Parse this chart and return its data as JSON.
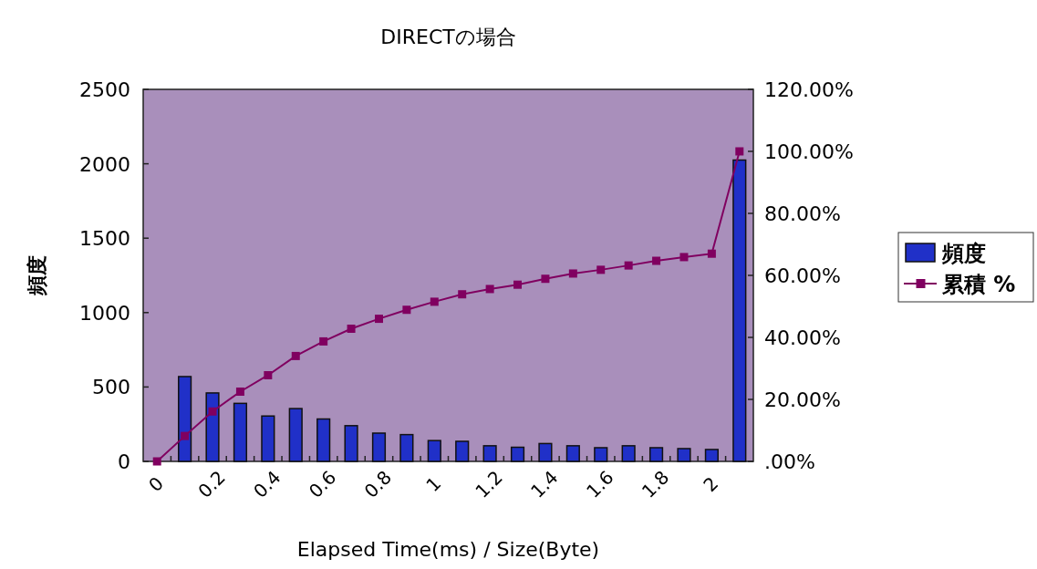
{
  "chart_data": {
    "type": "bar",
    "title": "DIRECTの場合",
    "xlabel": "Elapsed Time(ms) / Size(Byte)",
    "ylabel": "頻度",
    "categories": [
      "0",
      null,
      "0.2",
      null,
      "0.4",
      null,
      "0.6",
      null,
      "0.8",
      null,
      "1",
      null,
      "1.2",
      null,
      "1.4",
      null,
      "1.6",
      null,
      "1.8",
      null,
      "2",
      null
    ],
    "series": [
      {
        "name": "頻度",
        "color": "#2030c8",
        "values": [
          0,
          570,
          460,
          390,
          305,
          355,
          285,
          240,
          190,
          180,
          140,
          135,
          105,
          95,
          120,
          105,
          92,
          105,
          92,
          86,
          80,
          2025
        ]
      },
      {
        "name": "累積 %",
        "type": "line",
        "axis": "y2",
        "color": "#800060",
        "marker": "square",
        "values": [
          0,
          8.2,
          16.1,
          22.5,
          27.8,
          34,
          38.7,
          42.8,
          46,
          48.9,
          51.5,
          53.9,
          55.6,
          57,
          58.9,
          60.6,
          61.8,
          63.2,
          64.7,
          65.9,
          67,
          100
        ]
      }
    ],
    "ylim": [
      0,
      2500
    ],
    "yticks": [
      0,
      500,
      1000,
      1500,
      2000,
      2500
    ],
    "y2lim": [
      0,
      120
    ],
    "y2ticks": [
      {
        "value": 0,
        "label": ".00%"
      },
      {
        "value": 20,
        "label": "20.00%"
      },
      {
        "value": 40,
        "label": "40.00%"
      },
      {
        "value": 60,
        "label": "60.00%"
      },
      {
        "value": 80,
        "label": "80.00%"
      },
      {
        "value": 100,
        "label": "100.00%"
      },
      {
        "value": 120,
        "label": "120.00%"
      }
    ],
    "legend": "right"
  }
}
